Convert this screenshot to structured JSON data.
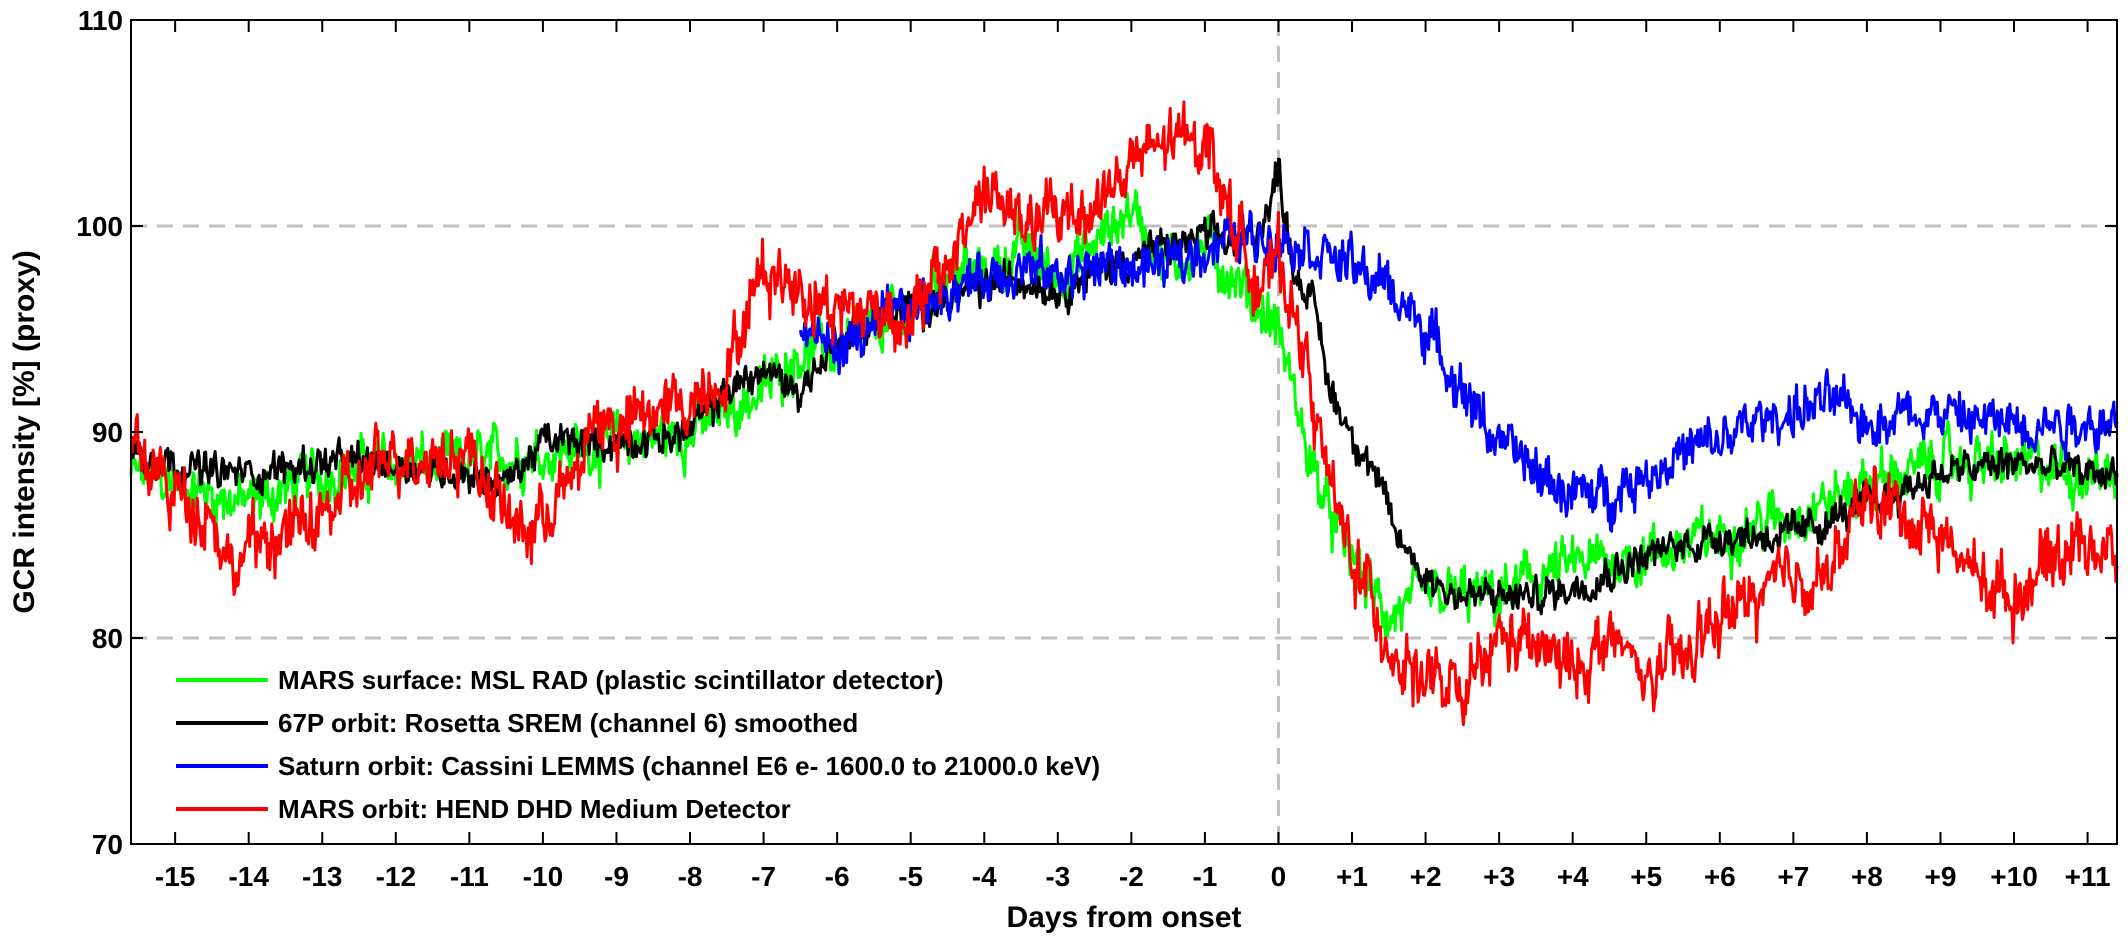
{
  "chart_data": {
    "type": "line",
    "xlabel": "Days from onset",
    "ylabel": "GCR intensity [%] (proxy)",
    "xlim": [
      -15.6,
      11.4
    ],
    "ylim": [
      70,
      110
    ],
    "x_ticks": [
      -15,
      -14,
      -13,
      -12,
      -11,
      -10,
      -9,
      -8,
      -7,
      -6,
      -5,
      -4,
      -3,
      -2,
      -1,
      0,
      1,
      2,
      3,
      4,
      5,
      6,
      7,
      8,
      9,
      10,
      11
    ],
    "x_tick_labels": [
      "-15",
      "-14",
      "-13",
      "-12",
      "-11",
      "-10",
      "-9",
      "-8",
      "-7",
      "-6",
      "-5",
      "-4",
      "-3",
      "-2",
      "-1",
      "0",
      "+1",
      "+2",
      "+3",
      "+4",
      "+5",
      "+6",
      "+7",
      "+8",
      "+9",
      "+10",
      "+11"
    ],
    "y_ticks": [
      70,
      80,
      90,
      100,
      110
    ],
    "y_tick_labels": [
      "70",
      "80",
      "90",
      "100",
      "110"
    ],
    "reference_lines": {
      "horizontal": [
        80,
        100
      ],
      "vertical": [
        0
      ],
      "color": "#c0c0c0",
      "style": "dashed"
    },
    "legend_position": "bottom-left",
    "noise": [
      1.5,
      1.0,
      1.4,
      1.8
    ],
    "series": [
      {
        "name": "MARS surface: MSL RAD (plastic scintillator detector)",
        "color": "#00ff00",
        "x": [
          -15.6,
          -15,
          -14,
          -13,
          -12,
          -11,
          -10,
          -9,
          -8,
          -7,
          -6.5,
          -6,
          -5,
          -4.5,
          -4,
          -3.5,
          -3,
          -2.5,
          -2,
          -1.5,
          -1,
          -0.5,
          0,
          0.2,
          0.4,
          0.6,
          0.8,
          1,
          1.2,
          1.5,
          2,
          2.5,
          3,
          3.5,
          4,
          5,
          6,
          7,
          8,
          9,
          10,
          11,
          11.4
        ],
        "y": [
          88,
          87.5,
          86.5,
          88,
          88.5,
          88.5,
          89,
          89.5,
          90,
          92,
          94,
          94,
          96,
          98,
          97.5,
          99,
          97.5,
          99,
          101,
          98,
          99,
          97,
          95,
          92,
          89,
          87,
          85,
          84,
          82.5,
          81,
          82,
          82,
          82,
          83,
          83.5,
          84,
          85,
          86,
          87.5,
          88.5,
          88.5,
          88,
          88
        ]
      },
      {
        "name": "67P orbit: Rosetta SREM (channel 6) smoothed",
        "color": "#000000",
        "x": [
          -15.6,
          -15,
          -14.5,
          -14,
          -13,
          -12,
          -11,
          -10.5,
          -10,
          -9,
          -8,
          -7.5,
          -7,
          -6.5,
          -6,
          -5,
          -4,
          -3.5,
          -3,
          -2,
          -1,
          -0.5,
          -0.1,
          0,
          0.2,
          0.5,
          0.7,
          1,
          1.3,
          1.6,
          2,
          2.5,
          3,
          3.5,
          4,
          5,
          6,
          7,
          8,
          9,
          10,
          11,
          11.4
        ],
        "y": [
          89,
          88.5,
          88,
          88,
          88.5,
          88.5,
          88,
          87.5,
          89.5,
          89.5,
          90,
          92,
          93,
          92,
          94.5,
          96,
          97,
          97.5,
          97,
          98.5,
          99.5,
          99,
          101,
          103,
          98,
          96,
          92,
          90,
          88,
          85,
          83,
          82,
          82,
          82,
          82.5,
          84,
          85,
          85,
          86.5,
          88,
          88.5,
          88,
          88
        ]
      },
      {
        "name": "Saturn orbit: Cassini LEMMS (channel E6 e- 1600.0 to 21000.0 keV)",
        "color": "#0000ff",
        "x": [
          -6.5,
          -6,
          -5.5,
          -5,
          -4.5,
          -4,
          -3.5,
          -3,
          -2.5,
          -2,
          -1.5,
          -1,
          -0.5,
          0,
          0.5,
          1,
          1.5,
          2,
          2.5,
          3,
          3.5,
          4,
          4.5,
          5,
          5.5,
          6,
          6.5,
          7,
          7.5,
          8,
          8.5,
          9,
          9.5,
          10,
          10.5,
          11,
          11.4
        ],
        "y": [
          95,
          94,
          95,
          96,
          97,
          97.5,
          98,
          97.5,
          98,
          98,
          98,
          99,
          99.5,
          99.5,
          99,
          98,
          97,
          95,
          92,
          89.5,
          88,
          87,
          87,
          88,
          89,
          89.5,
          90.5,
          91,
          91.5,
          90.5,
          91,
          91,
          90.5,
          90.5,
          90.5,
          90.5,
          90.5
        ]
      },
      {
        "name": "MARS orbit: HEND DHD Medium Detector",
        "color": "#ff0000",
        "x": [
          -15.6,
          -15,
          -14.5,
          -14.2,
          -14,
          -13.5,
          -13,
          -12,
          -11.5,
          -11,
          -10.5,
          -10.2,
          -10,
          -9.5,
          -9.3,
          -9,
          -8.5,
          -8,
          -7.5,
          -7,
          -6.5,
          -6,
          -5.5,
          -5,
          -4.5,
          -4,
          -3.5,
          -3,
          -2.5,
          -2,
          -1.5,
          -1,
          -0.5,
          -0.2,
          0,
          0.2,
          0.4,
          0.6,
          0.8,
          1,
          1.3,
          1.6,
          2,
          2.5,
          3,
          3.5,
          4,
          4.5,
          5,
          5.5,
          6,
          6.5,
          7,
          7.5,
          8,
          8.5,
          9,
          9.5,
          10,
          10.5,
          11,
          11.4
        ],
        "y": [
          89.5,
          87,
          86,
          83,
          84.5,
          85,
          86,
          89,
          89,
          89,
          86,
          85,
          86,
          88,
          91,
          90,
          91,
          91.5,
          93,
          98,
          97,
          96,
          96,
          95.5,
          98,
          102,
          100,
          100.5,
          101,
          103,
          104,
          104.5,
          99,
          97,
          98.5,
          96,
          93,
          89,
          86,
          84,
          81.5,
          79,
          78,
          77,
          80,
          79.5,
          78.5,
          80,
          78,
          79,
          81,
          82,
          83,
          83,
          87,
          86,
          85,
          83,
          82,
          84,
          85,
          83.5
        ]
      }
    ]
  }
}
